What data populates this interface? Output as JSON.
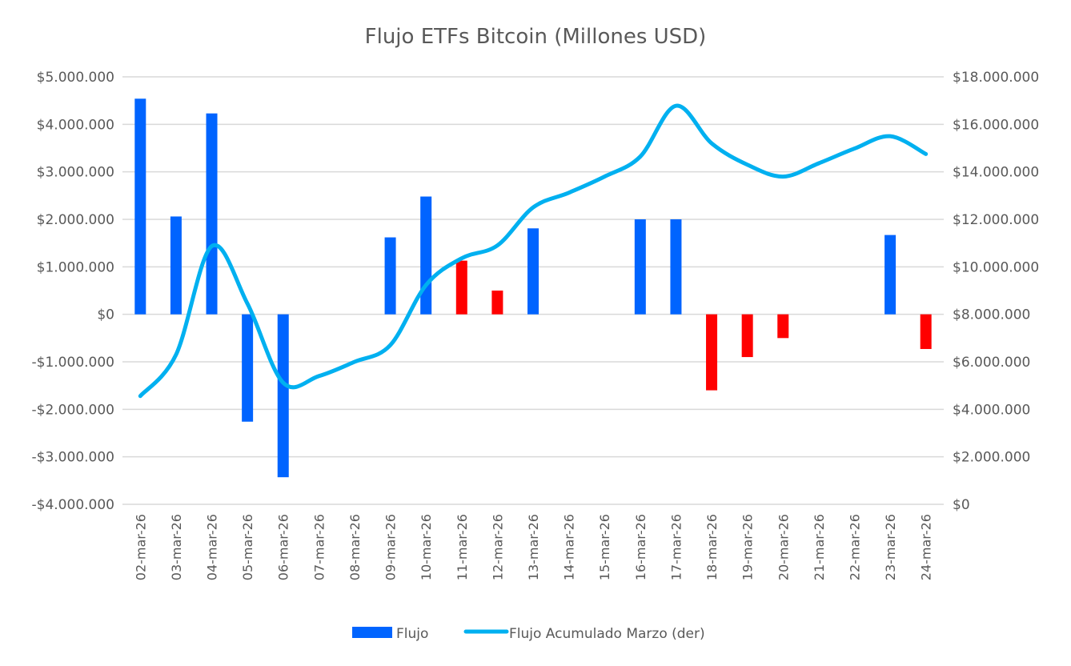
{
  "chart_data": {
    "type": "bar+line",
    "title": "Flujo ETFs Bitcoin (Millones USD)",
    "categories": [
      "02-mar-26",
      "03-mar-26",
      "04-mar-26",
      "05-mar-26",
      "06-mar-26",
      "07-mar-26",
      "08-mar-26",
      "09-mar-26",
      "10-mar-26",
      "11-mar-26",
      "12-mar-26",
      "13-mar-26",
      "14-mar-26",
      "15-mar-26",
      "16-mar-26",
      "17-mar-26",
      "18-mar-26",
      "19-mar-26",
      "20-mar-26",
      "21-mar-26",
      "22-mar-26",
      "23-mar-26",
      "24-mar-26"
    ],
    "y_left": {
      "min": -4000000,
      "max": 5000000,
      "step": 1000000,
      "tick_labels": [
        "-$4.000.000",
        "-$3.000.000",
        "-$2.000.000",
        "-$1.000.000",
        "$0",
        "$1.000.000",
        "$2.000.000",
        "$3.000.000",
        "$4.000.000",
        "$5.000.000"
      ]
    },
    "y_right": {
      "min": 0,
      "max": 18000000,
      "step": 2000000,
      "tick_labels": [
        "$0",
        "$2.000.000",
        "$4.000.000",
        "$6.000.000",
        "$8.000.000",
        "$10.000.000",
        "$12.000.000",
        "$14.000.000",
        "$16.000.000",
        "$18.000.000"
      ]
    },
    "grid": true,
    "legend_position": "bottom",
    "series": [
      {
        "name": "Flujo",
        "type": "bar",
        "axis": "left",
        "color": "#0064FF",
        "negative_color": "#FF0000",
        "values": [
          4540000,
          2060000,
          4230000,
          -2260000,
          -3430000,
          0,
          0,
          1620000,
          2480000,
          1130000,
          500000,
          1810000,
          0,
          0,
          2000000,
          2000000,
          -1600000,
          -900000,
          -500000,
          0,
          0,
          1670000,
          -730000
        ],
        "colors": [
          "#0064FF",
          "#0064FF",
          "#0064FF",
          "#0064FF",
          "#0064FF",
          "#0064FF",
          "#0064FF",
          "#0064FF",
          "#0064FF",
          "#FF0000",
          "#FF0000",
          "#0064FF",
          "#0064FF",
          "#0064FF",
          "#0064FF",
          "#0064FF",
          "#FF0000",
          "#FF0000",
          "#FF0000",
          "#0064FF",
          "#0064FF",
          "#0064FF",
          "#FF0000"
        ]
      },
      {
        "name": "Flujo Acumulado Marzo (der)",
        "type": "line",
        "smooth": true,
        "axis": "right",
        "color": "#00B0F0",
        "values": [
          4560000,
          6300000,
          10870000,
          8450000,
          5120000,
          5400000,
          6000000,
          6700000,
          9230000,
          10360000,
          10900000,
          12500000,
          13120000,
          13800000,
          14640000,
          16780000,
          15200000,
          14300000,
          13800000,
          14360000,
          14980000,
          15500000,
          14750000
        ]
      }
    ]
  }
}
